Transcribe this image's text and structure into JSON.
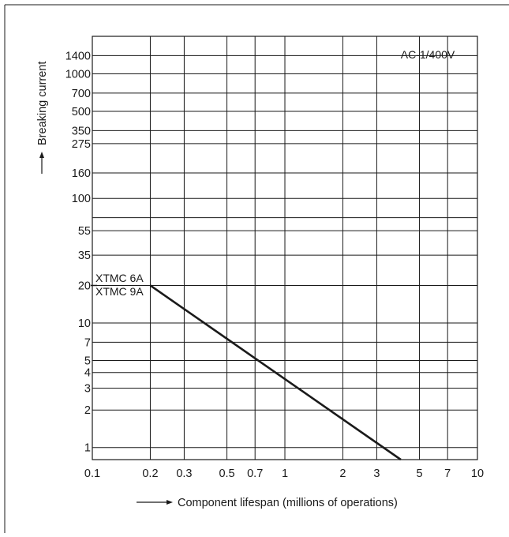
{
  "chart_data": {
    "type": "line",
    "annotation": "AC-1/400V",
    "xlabel": "Component lifespan (millions of operations)",
    "ylabel": "Breaking current",
    "x_scale": "log",
    "y_scale": "log",
    "grid": true,
    "xlim": [
      0.1,
      10
    ],
    "ylim": [
      0.8,
      2000
    ],
    "x_ticks": [
      {
        "value": 0.1,
        "label": "0.1"
      },
      {
        "value": 0.2,
        "label": "0.2"
      },
      {
        "value": 0.3,
        "label": "0.3"
      },
      {
        "value": 0.5,
        "label": "0.5"
      },
      {
        "value": 0.7,
        "label": "0.7"
      },
      {
        "value": 1,
        "label": "1"
      },
      {
        "value": 2,
        "label": "2"
      },
      {
        "value": 3,
        "label": "3"
      },
      {
        "value": 5,
        "label": "5"
      },
      {
        "value": 7,
        "label": "7"
      },
      {
        "value": 10,
        "label": "10"
      }
    ],
    "y_ticks": [
      {
        "value": 1,
        "label": "1"
      },
      {
        "value": 2,
        "label": "2"
      },
      {
        "value": 3,
        "label": "3"
      },
      {
        "value": 4,
        "label": "4"
      },
      {
        "value": 5,
        "label": "5"
      },
      {
        "value": 7,
        "label": "7"
      },
      {
        "value": 10,
        "label": "10"
      },
      {
        "value": 20,
        "label": "20"
      },
      {
        "value": 35,
        "label": "35"
      },
      {
        "value": 55,
        "label": "55"
      },
      {
        "value": 70,
        "label": ""
      },
      {
        "value": 100,
        "label": "100"
      },
      {
        "value": 160,
        "label": "160"
      },
      {
        "value": 275,
        "label": "275"
      },
      {
        "value": 350,
        "label": "350"
      },
      {
        "value": 500,
        "label": "500"
      },
      {
        "value": 700,
        "label": "700"
      },
      {
        "value": 1000,
        "label": "1000"
      },
      {
        "value": 1400,
        "label": "1400"
      }
    ],
    "series": [
      {
        "name": "XTMC 6A / XTMC 9A",
        "labels": [
          "XTMC 6A",
          "XTMC 9A"
        ],
        "points": [
          [
            0.2,
            20
          ],
          [
            4.0,
            0.8
          ]
        ]
      }
    ],
    "line_color": "#1a1a1a",
    "grid_color": "#1a1a1a"
  }
}
